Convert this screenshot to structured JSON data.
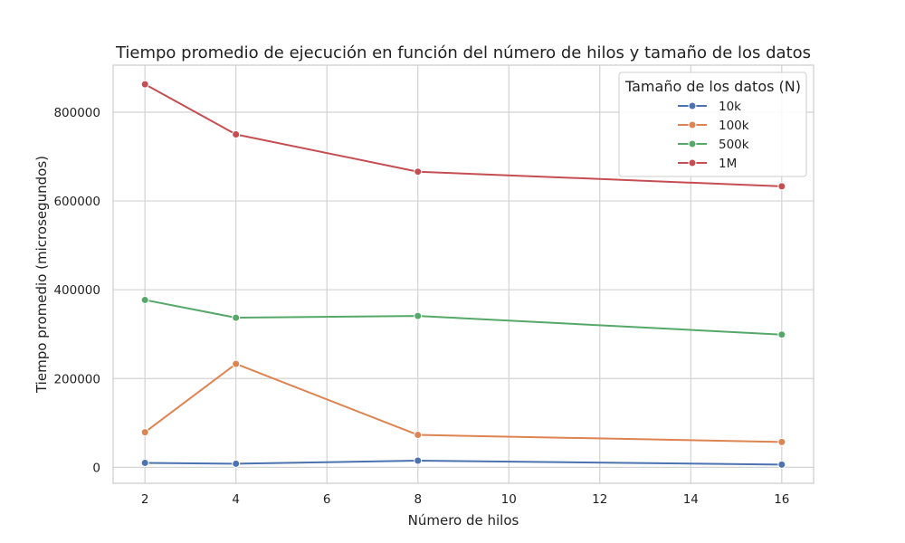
{
  "chart_data": {
    "type": "line",
    "title": "Tiempo promedio de ejecución en función del número de hilos y tamaño de los datos",
    "xlabel": "Número de hilos",
    "ylabel": "Tiempo promedio (microsegundos)",
    "xlim": [
      1.3,
      16.7
    ],
    "ylim": [
      -36000,
      906000
    ],
    "x_ticks": [
      2,
      4,
      6,
      8,
      10,
      12,
      14,
      16
    ],
    "x_tick_labels": [
      "2",
      "4",
      "6",
      "8",
      "10",
      "12",
      "14",
      "16"
    ],
    "y_ticks": [
      0,
      200000,
      400000,
      600000,
      800000
    ],
    "y_tick_labels": [
      "0",
      "200000",
      "400000",
      "600000",
      "800000"
    ],
    "grid": true,
    "legend": {
      "title": "Tamaño de los datos (N)",
      "placement": "top-right"
    },
    "x": [
      2,
      4,
      8,
      16
    ],
    "series": [
      {
        "name": "10k",
        "color": "#4c72b0",
        "values": [
          10000,
          8000,
          15000,
          6000
        ]
      },
      {
        "name": "100k",
        "color": "#dd8452",
        "values": [
          79000,
          233000,
          73000,
          57000
        ]
      },
      {
        "name": "500k",
        "color": "#55a868",
        "values": [
          377000,
          337000,
          341000,
          299000
        ]
      },
      {
        "name": "1M",
        "color": "#c44e52",
        "values": [
          863000,
          750000,
          666000,
          633000
        ]
      }
    ]
  }
}
